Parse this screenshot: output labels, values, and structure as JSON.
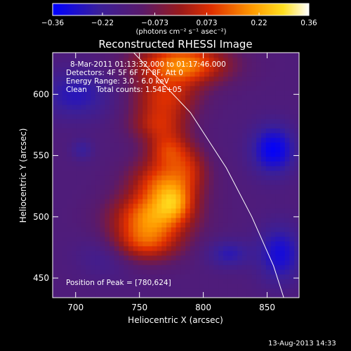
{
  "chart_data": {
    "type": "heatmap",
    "title": "Reconstructed RHESSI Image",
    "xlabel": "Heliocentric X (arcsec)",
    "ylabel": "Heliocentric Y (arcsec)",
    "xlim": [
      682,
      875
    ],
    "ylim": [
      434,
      634
    ],
    "x_ticks": [
      700,
      750,
      800,
      850
    ],
    "y_ticks": [
      450,
      500,
      550,
      600
    ],
    "colorbar": {
      "ticks": [
        -0.36,
        -0.22,
        -0.073,
        0.073,
        0.22,
        0.36
      ],
      "tick_labels": [
        "−0.36",
        "−0.22",
        "−0.073",
        "0.073",
        "0.22",
        "0.36"
      ],
      "range": [
        -0.36,
        0.36
      ],
      "units": "(photons cm⁻² s⁻¹ asec⁻²)"
    },
    "info_lines": [
      "8-Mar-2011 01:13:32.000 to 01:17:46.000",
      "Detectors: 4F 5F 6F 7F 8F, Att 0",
      "Energy Range: 3.0 - 6.0 keV",
      "Clean    Total counts: 1.54E+05"
    ],
    "peak_label": "Position of Peak = [780,624]",
    "peak_position": [
      780,
      624
    ],
    "limb_curve": [
      [
        740,
        640
      ],
      [
        790,
        585
      ],
      [
        818,
        540
      ],
      [
        838,
        500
      ],
      [
        855,
        460
      ],
      [
        863,
        434
      ]
    ],
    "sources": [
      {
        "x": 783,
        "y": 625,
        "sx": 25,
        "sy": 12,
        "amp": 0.33
      },
      {
        "x": 770,
        "y": 597,
        "sx": 18,
        "sy": 12,
        "amp": 0.2
      },
      {
        "x": 765,
        "y": 575,
        "sx": 16,
        "sy": 10,
        "amp": 0.17
      },
      {
        "x": 773,
        "y": 555,
        "sx": 12,
        "sy": 10,
        "amp": 0.19
      },
      {
        "x": 770,
        "y": 528,
        "sx": 19,
        "sy": 14,
        "amp": 0.27
      },
      {
        "x": 760,
        "y": 500,
        "sx": 22,
        "sy": 13,
        "amp": 0.3
      },
      {
        "x": 753,
        "y": 478,
        "sx": 20,
        "sy": 11,
        "amp": 0.22
      },
      {
        "x": 778,
        "y": 512,
        "sx": 10,
        "sy": 10,
        "amp": 0.14
      },
      {
        "x": 790,
        "y": 542,
        "sx": 10,
        "sy": 12,
        "amp": 0.1
      },
      {
        "x": 705,
        "y": 555,
        "sx": 6,
        "sy": 6,
        "amp": -0.08
      },
      {
        "x": 855,
        "y": 555,
        "sx": 12,
        "sy": 14,
        "amp": -0.2
      },
      {
        "x": 700,
        "y": 600,
        "sx": 20,
        "sy": 14,
        "amp": -0.12
      },
      {
        "x": 860,
        "y": 470,
        "sx": 12,
        "sy": 16,
        "amp": -0.16
      },
      {
        "x": 725,
        "y": 470,
        "sx": 16,
        "sy": 12,
        "amp": -0.08
      },
      {
        "x": 820,
        "y": 470,
        "sx": 12,
        "sy": 8,
        "amp": -0.11
      }
    ],
    "background_level": -0.15
  },
  "timestamp": "13-Aug-2013 14:33"
}
